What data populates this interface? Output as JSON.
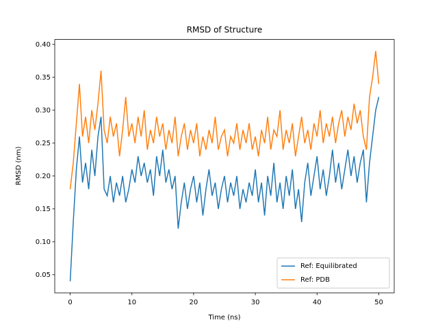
{
  "chart_data": {
    "type": "line",
    "title": "RMSD of Structure",
    "xlabel": "Time (ns)",
    "ylabel": "RMSD (nm)",
    "x": [
      0,
      0.5,
      1,
      1.5,
      2,
      2.5,
      3,
      3.5,
      4,
      4.5,
      5,
      5.5,
      6,
      6.5,
      7,
      7.5,
      8,
      8.5,
      9,
      9.5,
      10,
      10.5,
      11,
      11.5,
      12,
      12.5,
      13,
      13.5,
      14,
      14.5,
      15,
      15.5,
      16,
      16.5,
      17,
      17.5,
      18,
      18.5,
      19,
      19.5,
      20,
      20.5,
      21,
      21.5,
      22,
      22.5,
      23,
      23.5,
      24,
      24.5,
      25,
      25.5,
      26,
      26.5,
      27,
      27.5,
      28,
      28.5,
      29,
      29.5,
      30,
      30.5,
      31,
      31.5,
      32,
      32.5,
      33,
      33.5,
      34,
      34.5,
      35,
      35.5,
      36,
      36.5,
      37,
      37.5,
      38,
      38.5,
      39,
      39.5,
      40,
      40.5,
      41,
      41.5,
      42,
      42.5,
      43,
      43.5,
      44,
      44.5,
      45,
      45.5,
      46,
      46.5,
      47,
      47.5,
      48,
      48.5,
      49,
      49.5,
      50
    ],
    "series": [
      {
        "name": "Ref: Equilibrated",
        "color": "#1f77b4",
        "values": [
          0.04,
          0.13,
          0.21,
          0.26,
          0.19,
          0.22,
          0.18,
          0.24,
          0.2,
          0.26,
          0.29,
          0.18,
          0.17,
          0.2,
          0.16,
          0.19,
          0.17,
          0.2,
          0.16,
          0.18,
          0.21,
          0.19,
          0.23,
          0.2,
          0.22,
          0.19,
          0.21,
          0.17,
          0.23,
          0.2,
          0.24,
          0.19,
          0.21,
          0.18,
          0.2,
          0.12,
          0.16,
          0.19,
          0.15,
          0.18,
          0.2,
          0.16,
          0.19,
          0.14,
          0.18,
          0.21,
          0.17,
          0.19,
          0.15,
          0.18,
          0.2,
          0.16,
          0.19,
          0.17,
          0.2,
          0.15,
          0.18,
          0.16,
          0.19,
          0.17,
          0.21,
          0.16,
          0.19,
          0.14,
          0.2,
          0.17,
          0.22,
          0.16,
          0.19,
          0.15,
          0.2,
          0.17,
          0.21,
          0.15,
          0.18,
          0.13,
          0.19,
          0.22,
          0.17,
          0.2,
          0.23,
          0.18,
          0.21,
          0.17,
          0.2,
          0.24,
          0.19,
          0.22,
          0.18,
          0.21,
          0.24,
          0.2,
          0.23,
          0.19,
          0.22,
          0.24,
          0.16,
          0.22,
          0.26,
          0.3,
          0.32
        ]
      },
      {
        "name": "Ref: PDB",
        "color": "#ff7f0e",
        "values": [
          0.18,
          0.22,
          0.28,
          0.34,
          0.26,
          0.29,
          0.25,
          0.3,
          0.27,
          0.31,
          0.36,
          0.27,
          0.25,
          0.29,
          0.26,
          0.28,
          0.23,
          0.27,
          0.32,
          0.26,
          0.28,
          0.25,
          0.29,
          0.26,
          0.3,
          0.24,
          0.27,
          0.25,
          0.29,
          0.26,
          0.28,
          0.24,
          0.27,
          0.25,
          0.29,
          0.23,
          0.26,
          0.28,
          0.24,
          0.27,
          0.25,
          0.28,
          0.23,
          0.26,
          0.24,
          0.27,
          0.25,
          0.29,
          0.24,
          0.26,
          0.27,
          0.23,
          0.26,
          0.25,
          0.28,
          0.24,
          0.27,
          0.25,
          0.28,
          0.24,
          0.26,
          0.23,
          0.27,
          0.25,
          0.29,
          0.24,
          0.27,
          0.26,
          0.3,
          0.24,
          0.27,
          0.25,
          0.28,
          0.23,
          0.26,
          0.29,
          0.25,
          0.27,
          0.24,
          0.28,
          0.26,
          0.3,
          0.25,
          0.28,
          0.26,
          0.29,
          0.25,
          0.28,
          0.3,
          0.26,
          0.29,
          0.27,
          0.31,
          0.28,
          0.3,
          0.26,
          0.24,
          0.32,
          0.35,
          0.39,
          0.34
        ]
      }
    ],
    "xlim": [
      -2.5,
      52.5
    ],
    "xticks": [
      0,
      10,
      20,
      30,
      40,
      50
    ],
    "ylim": [
      0.0225,
      0.4075
    ],
    "yticks": [
      0.05,
      {
        "value": 0.1,
        "label": "0.10"
      },
      0.15,
      {
        "value": 0.2,
        "label": "0.20"
      },
      0.25,
      {
        "value": 0.3,
        "label": "0.30"
      },
      0.35,
      {
        "value": 0.4,
        "label": "0.40"
      }
    ],
    "legend": "lower right"
  }
}
